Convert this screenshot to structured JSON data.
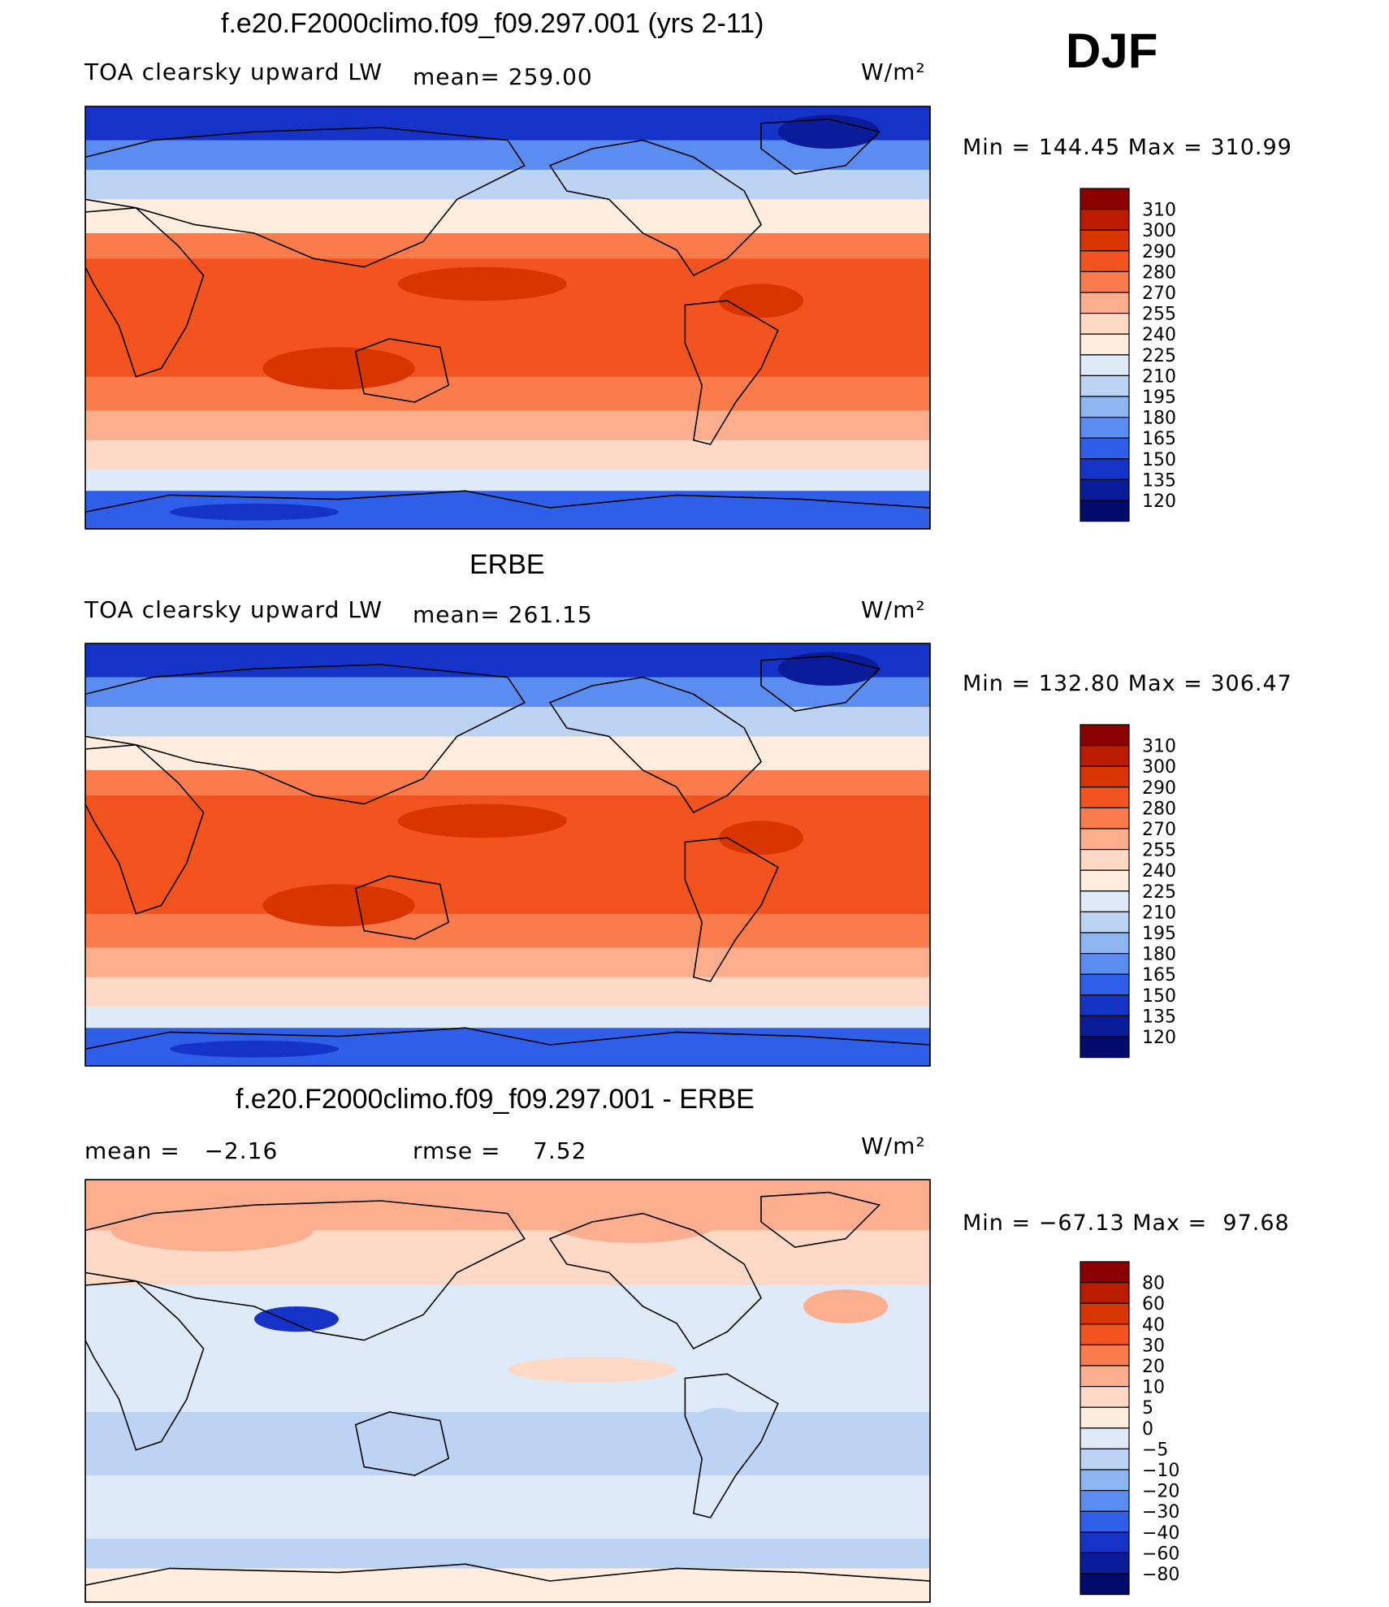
{
  "season": "DJF",
  "units_label": "W/m²",
  "chart_data": [
    {
      "type": "heatmap",
      "title": "f.e20.F2000climo.f09_f09.297.001 (yrs 2-11)",
      "field": "TOA clearsky upward LW",
      "mean_text": "mean= 259.00",
      "units": "W/m²",
      "min_max_text": "Min = 144.45 Max = 310.99",
      "min": 144.45,
      "max": 310.99,
      "colorbar_levels": [
        "310",
        "300",
        "290",
        "280",
        "270",
        "255",
        "240",
        "225",
        "210",
        "195",
        "180",
        "165",
        "150",
        "135",
        "120"
      ],
      "colorbar_colors": [
        "#8b0000",
        "#bb1c00",
        "#d93500",
        "#f2531f",
        "#fa7b4c",
        "#fcae8e",
        "#fdd9c6",
        "#ffeedd",
        "#dfeaf8",
        "#bdd3f4",
        "#8db5ef",
        "#5a8def",
        "#2f5ee8",
        "#1633c8",
        "#0a1c9a",
        "#000c6c"
      ],
      "grid": false
    },
    {
      "type": "heatmap",
      "title": "ERBE",
      "field": "TOA clearsky upward LW",
      "mean_text": "mean= 261.15",
      "units": "W/m²",
      "min_max_text": "Min = 132.80 Max = 306.47",
      "min": 132.8,
      "max": 306.47,
      "colorbar_levels": [
        "310",
        "300",
        "290",
        "280",
        "270",
        "255",
        "240",
        "225",
        "210",
        "195",
        "180",
        "165",
        "150",
        "135",
        "120"
      ],
      "colorbar_colors": [
        "#8b0000",
        "#bb1c00",
        "#d93500",
        "#f2531f",
        "#fa7b4c",
        "#fcae8e",
        "#fdd9c6",
        "#ffeedd",
        "#dfeaf8",
        "#bdd3f4",
        "#8db5ef",
        "#5a8def",
        "#2f5ee8",
        "#1633c8",
        "#0a1c9a",
        "#000c6c"
      ],
      "grid": false
    },
    {
      "type": "heatmap",
      "title": "f.e20.F2000climo.f09_f09.297.001 - ERBE",
      "mean_text": "mean =   −2.16",
      "rmse_text": "rmse =    7.52",
      "units": "W/m²",
      "min_max_text": "Min = −67.13 Max =  97.68",
      "min": -67.13,
      "max": 97.68,
      "colorbar_levels": [
        "80",
        "60",
        "40",
        "30",
        "20",
        "10",
        "5",
        "0",
        "−5",
        "−10",
        "−20",
        "−30",
        "−40",
        "−60",
        "−80"
      ],
      "colorbar_colors": [
        "#8b0000",
        "#bb1c00",
        "#d93500",
        "#f2531f",
        "#fa7b4c",
        "#fcae8e",
        "#fdd9c6",
        "#ffeedd",
        "#dfeaf8",
        "#bdd3f4",
        "#8db5ef",
        "#5a8def",
        "#2f5ee8",
        "#1633c8",
        "#0a1c9a",
        "#000c6c"
      ],
      "grid": false
    }
  ]
}
